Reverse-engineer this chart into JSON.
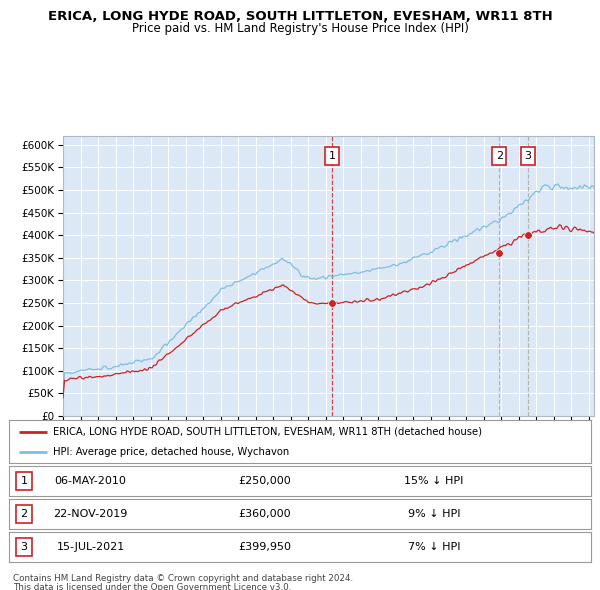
{
  "title": "ERICA, LONG HYDE ROAD, SOUTH LITTLETON, EVESHAM, WR11 8TH",
  "subtitle": "Price paid vs. HM Land Registry's House Price Index (HPI)",
  "ylim": [
    0,
    620000
  ],
  "yticks": [
    0,
    50000,
    100000,
    150000,
    200000,
    250000,
    300000,
    350000,
    400000,
    450000,
    500000,
    550000,
    600000
  ],
  "xlim_start": 1995.0,
  "xlim_end": 2025.3,
  "sale_dates": [
    2010.35,
    2019.9,
    2021.54
  ],
  "sale_prices": [
    250000,
    360000,
    399950
  ],
  "sale_labels": [
    "1",
    "2",
    "3"
  ],
  "legend_line1": "ERICA, LONG HYDE ROAD, SOUTH LITTLETON, EVESHAM, WR11 8TH (detached house)",
  "legend_line2": "HPI: Average price, detached house, Wychavon",
  "table_rows": [
    {
      "num": "1",
      "date": "06-MAY-2010",
      "price": "£250,000",
      "pct": "15% ↓ HPI"
    },
    {
      "num": "2",
      "date": "22-NOV-2019",
      "price": "£360,000",
      "pct": "9% ↓ HPI"
    },
    {
      "num": "3",
      "date": "15-JUL-2021",
      "price": "£399,950",
      "pct": "7% ↓ HPI"
    }
  ],
  "footnote1": "Contains HM Land Registry data © Crown copyright and database right 2024.",
  "footnote2": "This data is licensed under the Open Government Licence v3.0.",
  "hpi_color": "#7fbfdf",
  "price_color": "#cc2222",
  "dashed_color_1": "#cc2222",
  "dashed_color_23": "#aaaaaa",
  "bg_color": "#dce8f5",
  "plot_bg": "#dce8f5"
}
